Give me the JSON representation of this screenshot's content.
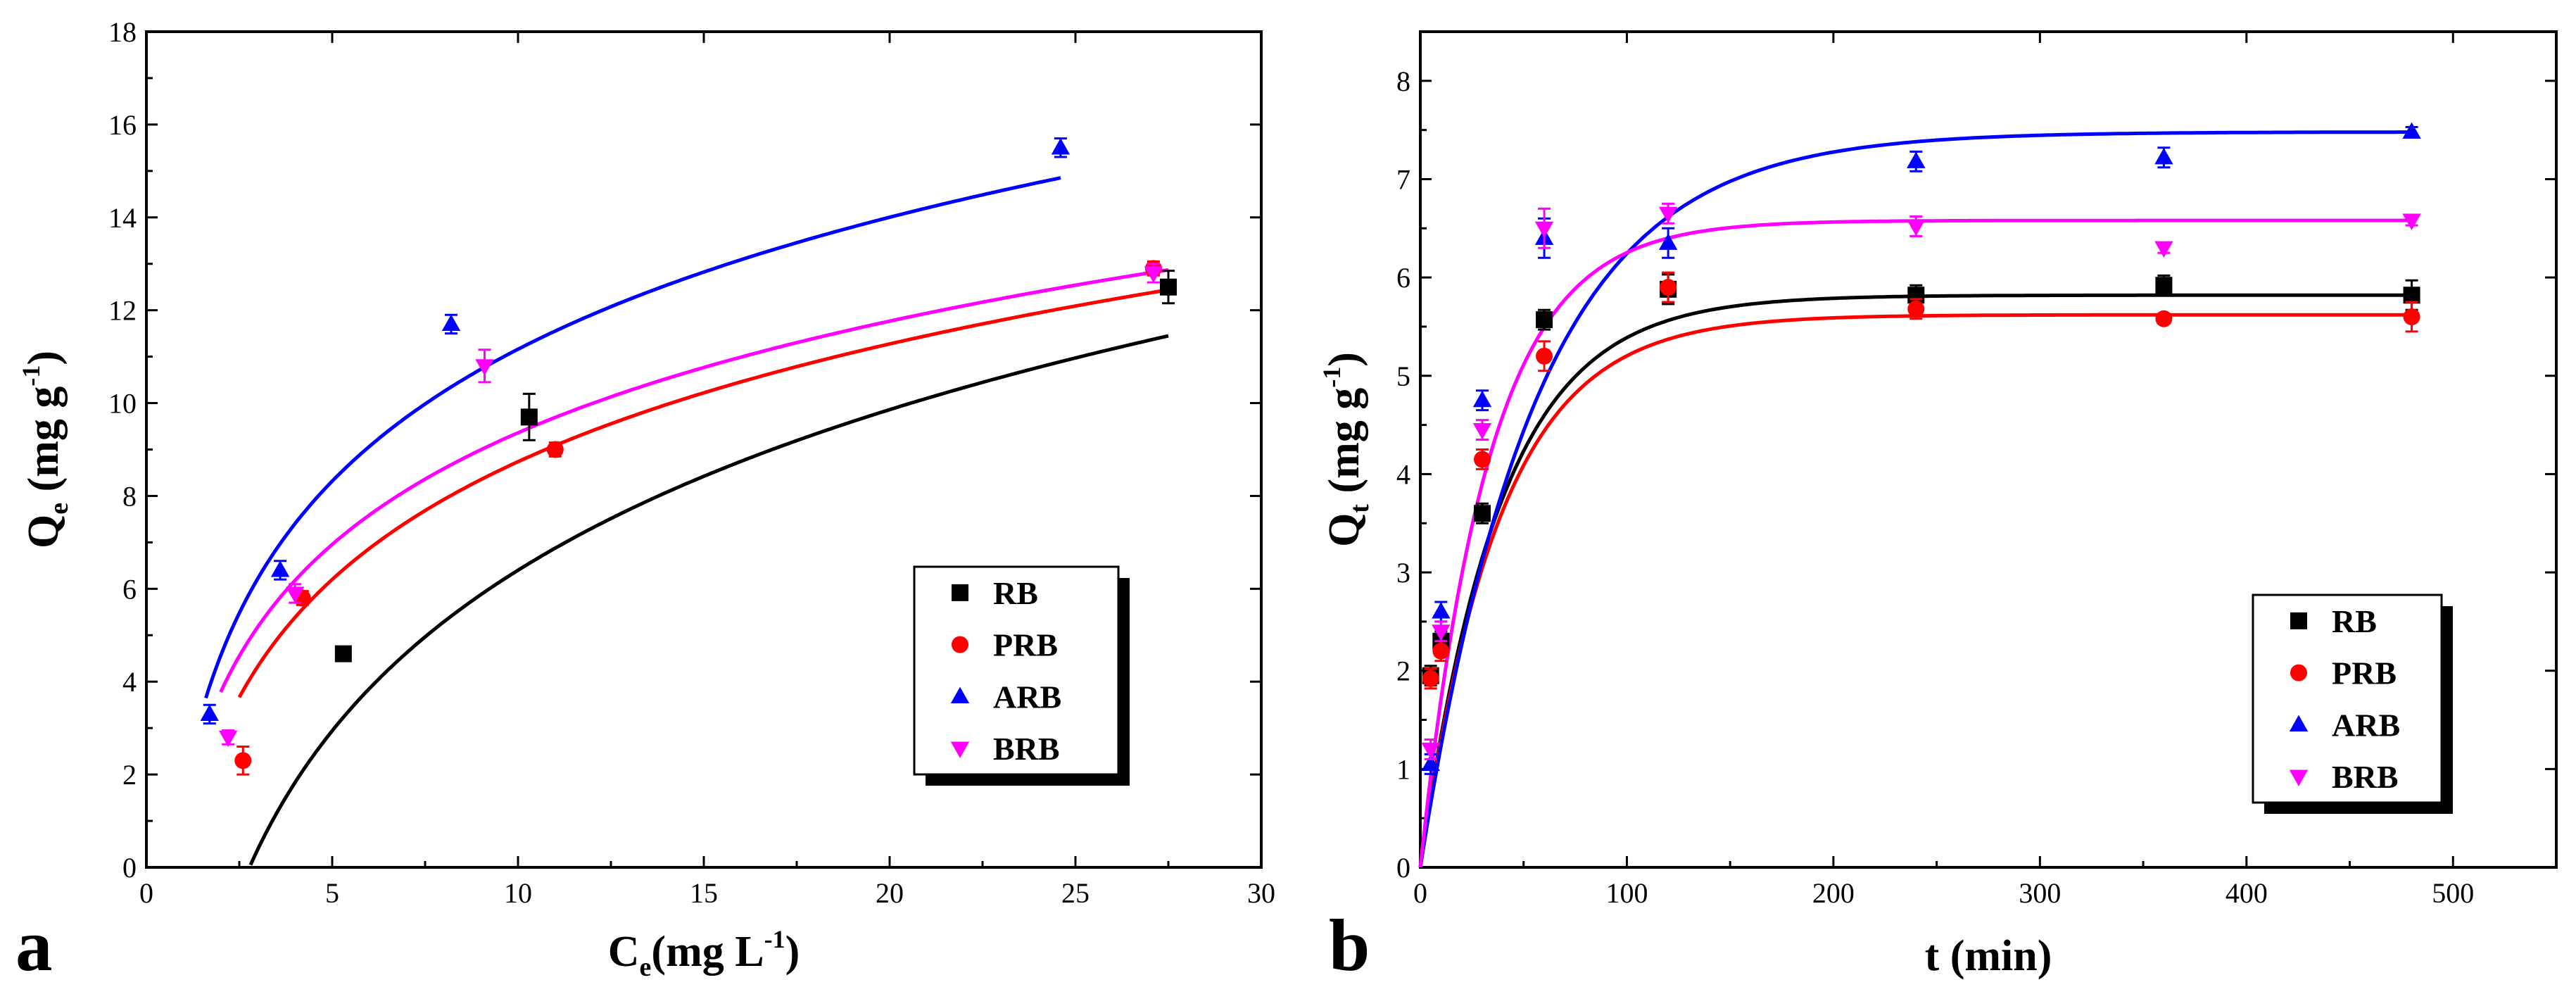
{
  "chart_data": [
    {
      "type": "scatter",
      "panel_label": "a",
      "title": "",
      "xlabel": "C",
      "xlabel_sub": "e",
      "xlabel_unit": "(mg L",
      "xlabel_sup": "-1",
      "xlabel_close": ")",
      "ylabel": "Q",
      "ylabel_sub": "e",
      "ylabel_unit": " (mg g",
      "ylabel_sup": "-1",
      "ylabel_close": ")",
      "xlim": [
        0,
        30
      ],
      "ylim": [
        0,
        18
      ],
      "xticks": [
        0,
        5,
        10,
        15,
        20,
        25,
        30
      ],
      "yticks": [
        0,
        2,
        4,
        6,
        8,
        10,
        12,
        14,
        16,
        18
      ],
      "legend_position": "bottom-right",
      "series": [
        {
          "name": "RB",
          "color": "#000000",
          "marker": "square",
          "x": [
            5.3,
            10.3,
            27.5
          ],
          "y": [
            4.6,
            9.7,
            12.5
          ],
          "err": [
            0.1,
            0.5,
            0.35
          ],
          "fit": {
            "model": "freundlich_log",
            "a": -5.09,
            "b": 4.99,
            "xrange": [
              2.7,
              27.5
            ]
          }
        },
        {
          "name": "PRB",
          "color": "#ff0000",
          "marker": "circle",
          "x": [
            2.6,
            4.2,
            11.0,
            27.1
          ],
          "y": [
            2.3,
            5.8,
            9.0,
            12.9
          ],
          "err": [
            0.3,
            0.15,
            0.15,
            0.15
          ],
          "fit": {
            "model": "freundlich_log",
            "a": 0.31,
            "b": 3.66,
            "xrange": [
              2.5,
              27.5
            ]
          }
        },
        {
          "name": "ARB",
          "color": "#0000ff",
          "marker": "triangle-up",
          "x": [
            1.7,
            3.6,
            8.2,
            24.6
          ],
          "y": [
            3.3,
            6.4,
            11.7,
            15.5
          ],
          "err": [
            0.2,
            0.2,
            0.2,
            0.2
          ],
          "fit": {
            "model": "freundlich_log",
            "a": 1.72,
            "b": 4.1,
            "xrange": [
              1.6,
              24.6
            ]
          }
        },
        {
          "name": "BRB",
          "color": "#ff00ff",
          "marker": "triangle-down",
          "x": [
            2.2,
            4.0,
            9.1,
            27.1
          ],
          "y": [
            2.8,
            5.9,
            10.8,
            12.8
          ],
          "err": [
            0.15,
            0.2,
            0.35,
            0.2
          ],
          "fit": {
            "model": "freundlich_log",
            "a": 1.37,
            "b": 3.47,
            "xrange": [
              2.0,
              27.5
            ]
          }
        }
      ]
    },
    {
      "type": "scatter",
      "panel_label": "b",
      "title": "",
      "xlabel": "t (min)",
      "ylabel": "Q",
      "ylabel_sub": "t",
      "ylabel_unit": " (mg g",
      "ylabel_sup": "-1",
      "ylabel_close": ")",
      "xlim": [
        0,
        550
      ],
      "ylim": [
        0,
        8.5
      ],
      "xticks": [
        0,
        100,
        200,
        300,
        400,
        500
      ],
      "yticks": [
        0,
        1,
        2,
        3,
        4,
        5,
        6,
        7,
        8
      ],
      "legend_position": "bottom-right",
      "series": [
        {
          "name": "RB",
          "color": "#000000",
          "marker": "square",
          "x": [
            5,
            10,
            30,
            60,
            120,
            240,
            360,
            480
          ],
          "y": [
            1.95,
            2.3,
            3.6,
            5.57,
            5.88,
            5.82,
            5.92,
            5.82
          ],
          "err": [
            0.1,
            0.1,
            0.1,
            0.1,
            0.15,
            0.1,
            0.1,
            0.15
          ],
          "fit": {
            "model": "pfo",
            "qe": 5.82,
            "k": 0.026,
            "xrange": [
              0,
              480
            ]
          }
        },
        {
          "name": "PRB",
          "color": "#ff0000",
          "marker": "circle",
          "x": [
            5,
            10,
            30,
            60,
            120,
            240,
            360,
            480
          ],
          "y": [
            1.92,
            2.2,
            4.15,
            5.2,
            5.9,
            5.68,
            5.58,
            5.6
          ],
          "err": [
            0.1,
            0.1,
            0.1,
            0.15,
            0.15,
            0.1,
            0.05,
            0.15
          ],
          "fit": {
            "model": "pfo",
            "qe": 5.62,
            "k": 0.026,
            "xrange": [
              0,
              480
            ]
          }
        },
        {
          "name": "ARB",
          "color": "#0000ff",
          "marker": "triangle-up",
          "x": [
            5,
            10,
            30,
            60,
            120,
            240,
            360,
            480
          ],
          "y": [
            1.05,
            2.6,
            4.75,
            6.4,
            6.35,
            7.18,
            7.22,
            7.48
          ],
          "err": [
            0.1,
            0.1,
            0.1,
            0.2,
            0.15,
            0.1,
            0.1,
            0.05
          ],
          "fit": {
            "model": "pfo",
            "qe": 7.48,
            "k": 0.018,
            "xrange": [
              0,
              480
            ]
          }
        },
        {
          "name": "BRB",
          "color": "#ff00ff",
          "marker": "triangle-down",
          "x": [
            5,
            10,
            30,
            60,
            120,
            240,
            360,
            480
          ],
          "y": [
            1.2,
            2.4,
            4.45,
            6.5,
            6.65,
            6.52,
            6.3,
            6.58
          ],
          "err": [
            0.1,
            0.1,
            0.1,
            0.2,
            0.1,
            0.1,
            0.05,
            0.05
          ],
          "fit": {
            "model": "pfo",
            "qe": 6.58,
            "k": 0.03,
            "xrange": [
              0,
              480
            ]
          }
        }
      ]
    }
  ]
}
